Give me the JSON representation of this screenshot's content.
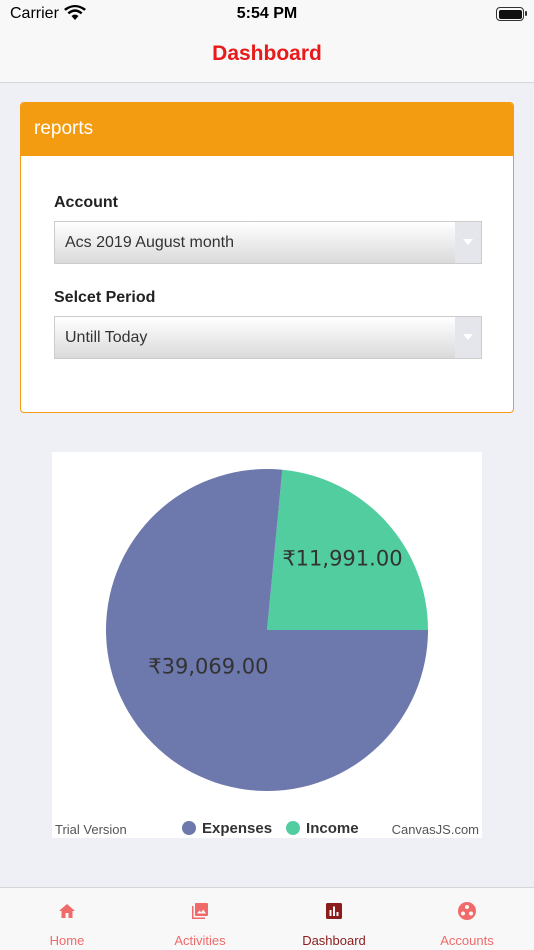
{
  "status_bar": {
    "carrier": "Carrier",
    "time": "5:54 PM"
  },
  "nav": {
    "title": "Dashboard"
  },
  "reports": {
    "header": "reports",
    "account": {
      "label": "Account",
      "selected": "Acs 2019 August month"
    },
    "period": {
      "label": "Selcet Period",
      "selected": "Untill Today"
    }
  },
  "chart": {
    "trial_text": "Trial Version",
    "credit_text": "CanvasJS.com"
  },
  "chart_data": {
    "type": "pie",
    "categories": [
      "Expenses",
      "Income"
    ],
    "values": [
      39069.0,
      11991.0
    ],
    "labels": [
      "₹39,069.00",
      "₹11,991.00"
    ],
    "colors": [
      "#6d78ad",
      "#51cda0"
    ],
    "legend_position": "bottom"
  },
  "tabs": [
    {
      "label": "Home",
      "icon": "home-icon",
      "active": false
    },
    {
      "label": "Activities",
      "icon": "photo-library-icon",
      "active": false
    },
    {
      "label": "Dashboard",
      "icon": "bar-chart-icon",
      "active": true
    },
    {
      "label": "Accounts",
      "icon": "group-icon",
      "active": false
    }
  ],
  "theme": {
    "accent": "#f39c12",
    "title_red": "#e81a1a",
    "tab_inactive": "#f06a6a",
    "tab_active": "#8b1c1c"
  }
}
